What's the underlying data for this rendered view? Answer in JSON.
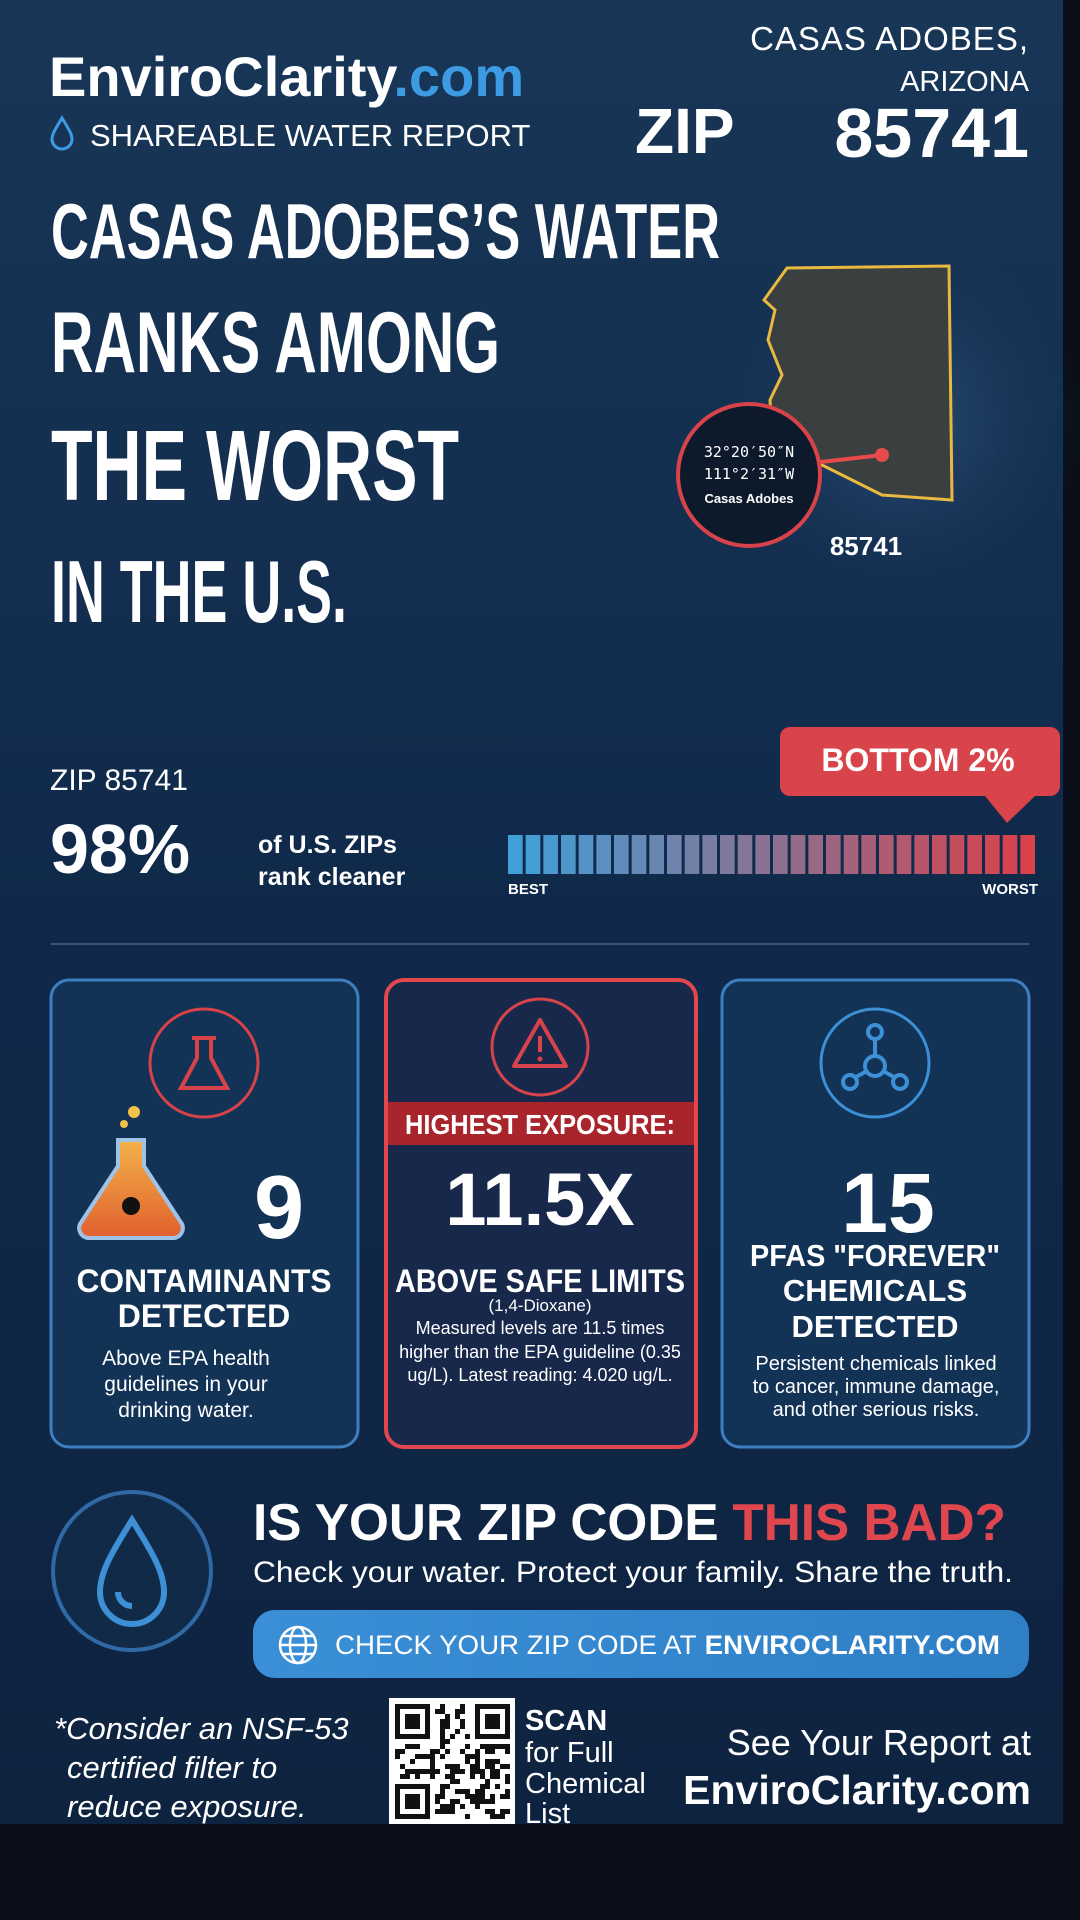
{
  "header": {
    "brand_name": "EnviroClarity",
    "brand_tld": ".com",
    "report_label": "SHAREABLE WATER REPORT",
    "city": "CASAS ADOBES,",
    "state": "ARIZONA",
    "zip_label": "ZIP",
    "zip": "85741"
  },
  "headline": [
    "CASAS ADOBES’S WATER",
    "RANKS AMONG",
    "THE WORST",
    "IN THE U.S."
  ],
  "map": {
    "lat": "32°20′50″N",
    "lon": "111°2′31″W",
    "place": "Casas Adobes",
    "zip": "85741"
  },
  "ranking": {
    "zip_line": "ZIP 85741",
    "percent": "98%",
    "caption": [
      "of U.S. ZIPs",
      "rank cleaner"
    ],
    "badge": "BOTTOM 2%",
    "scale_best": "BEST",
    "scale_worst": "WORST"
  },
  "cards": [
    {
      "number": "9",
      "title": [
        "CONTAMINANTS",
        "DETECTED"
      ],
      "description": [
        "Above EPA health",
        "guidelines in your",
        "drinking water."
      ]
    },
    {
      "banner": "HIGHEST EXPOSURE:",
      "number": "11.5X",
      "title": [
        "ABOVE SAFE LIMITS"
      ],
      "subtitle": "(1,4-Dioxane)",
      "description": [
        "Measured levels are 11.5 times",
        "higher than the EPA guideline (0.35",
        "ug/L). Latest reading: 4.020 ug/L."
      ]
    },
    {
      "number": "15",
      "title": [
        "PFAS \"FOREVER\"",
        "CHEMICALS",
        "DETECTED"
      ],
      "description": [
        "Persistent chemicals linked",
        "to cancer, immune damage,",
        "and other serious risks."
      ]
    }
  ],
  "cta": {
    "question": "IS YOUR ZIP CODE",
    "question_highlight": "THIS BAD?",
    "tagline": "Check your water. Protect your family. Share the truth.",
    "button": "CHECK YOUR ZIP CODE AT",
    "button_highlight": "ENVIROCLARITY.COM"
  },
  "footer": {
    "note": [
      "*Consider an NSF-53",
      "certified filter to",
      "reduce exposure."
    ],
    "scan": [
      "SCAN",
      "for Full",
      "Chemical",
      "List"
    ],
    "report": [
      "See Your Report at",
      "EnviroClarity.com"
    ]
  }
}
